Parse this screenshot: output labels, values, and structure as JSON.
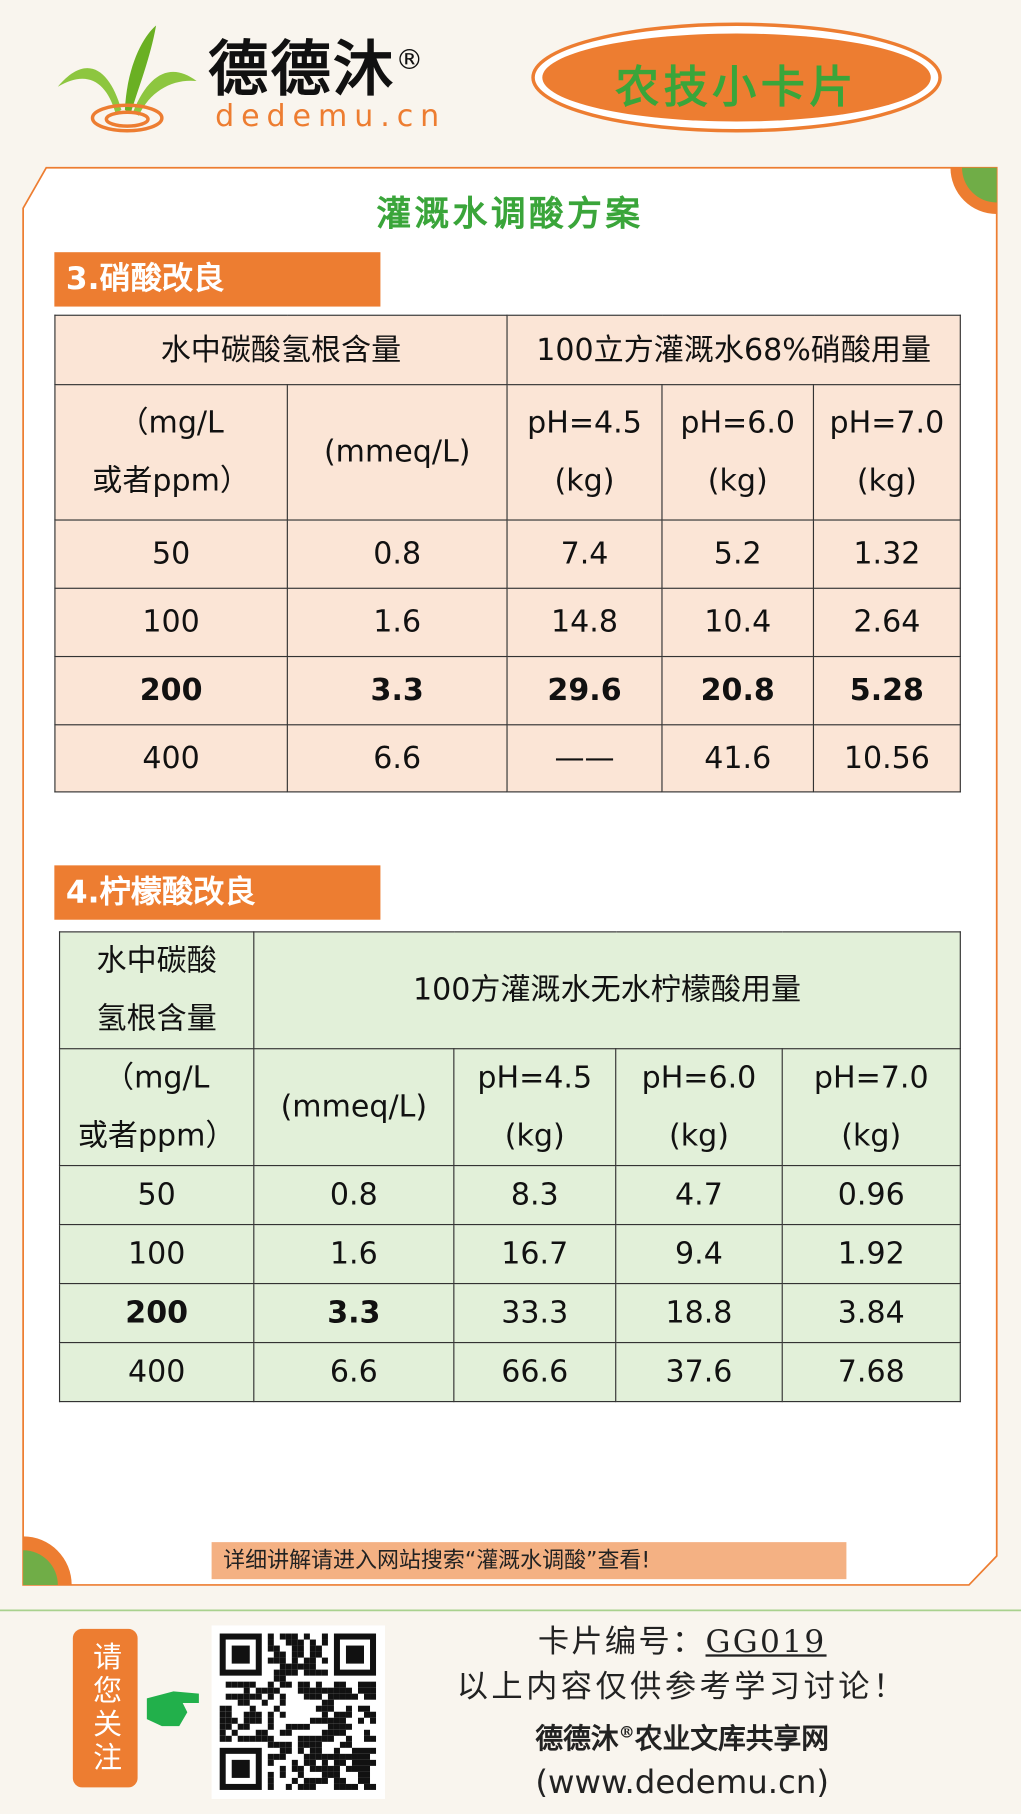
{
  "header": {
    "brand": "德德沐",
    "registered": "®",
    "domain": "dedemu.cn",
    "badge": "农技小卡片"
  },
  "title": "灌溉水调酸方案",
  "sections": [
    {
      "heading": "3.硝酸改良",
      "table": {
        "header": [
          [
            "水中碳酸氢根含量"
          ],
          [
            "100立方灌溉水68%硝酸用量"
          ]
        ],
        "subheader": [
          [
            "（mg/L",
            "或者ppm）"
          ],
          [
            "(mmeq/L)"
          ],
          [
            "pH=4.5",
            "(kg)"
          ],
          [
            "pH=6.0",
            "(kg)"
          ],
          [
            "pH=7.0",
            "(kg)"
          ]
        ],
        "rows": [
          [
            "50",
            "0.8",
            "7.4",
            "5.2",
            "1.32"
          ],
          [
            "100",
            "1.6",
            "14.8",
            "10.4",
            "2.64"
          ],
          [
            "200",
            "3.3",
            "29.6",
            "20.8",
            "5.28"
          ],
          [
            "400",
            "6.6",
            "——",
            "41.6",
            "10.56"
          ]
        ]
      }
    },
    {
      "heading": "4.柠檬酸改良",
      "table": {
        "header": [
          [
            "水中碳酸",
            "氢根含量"
          ],
          [
            "100方灌溉水无水柠檬酸用量"
          ]
        ],
        "subheader": [
          [
            "（mg/L",
            "或者ppm）"
          ],
          [
            "(mmeq/L)"
          ],
          [
            "pH=4.5",
            "(kg)"
          ],
          [
            "pH=6.0",
            "(kg)"
          ],
          [
            "pH=7.0",
            "(kg)"
          ]
        ],
        "rows": [
          [
            "50",
            "0.8",
            "8.3",
            "4.7",
            "0.96"
          ],
          [
            "100",
            "1.6",
            "16.7",
            "9.4",
            "1.92"
          ],
          [
            "200",
            "3.3",
            "33.3",
            "18.8",
            "3.84"
          ],
          [
            "400",
            "6.6",
            "66.6",
            "37.6",
            "7.68"
          ]
        ]
      }
    }
  ],
  "note": "详细讲解请进入网站搜索“灌溉水调酸”查看!",
  "footer": {
    "follow": "请您关注",
    "card_label": "卡片编号：",
    "card_id": "GG019",
    "disclaimer": "以上内容仅供参考学习讨论！",
    "site_brand": "德德沐",
    "site_registered": "®",
    "site_name": "农业文库共享网",
    "url": "(www.dedemu.cn)"
  }
}
